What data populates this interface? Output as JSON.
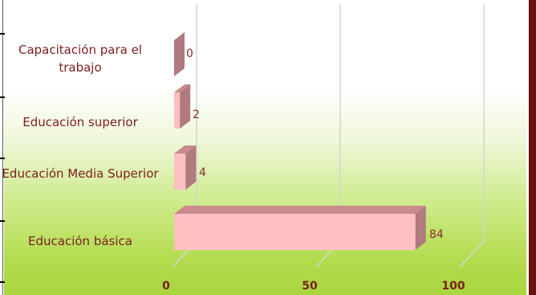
{
  "chart_data": {
    "type": "bar",
    "orientation": "horizontal",
    "categories": [
      "Capacitación para el trabajo",
      "Educación superior",
      "Educación Media Superior",
      "Educación básica"
    ],
    "values": [
      0,
      2,
      4,
      84
    ],
    "xlim": [
      0,
      100
    ],
    "x_ticks": [
      "0",
      "50",
      "100"
    ],
    "grid": true,
    "bar_color": "#ffbfc3",
    "bar_shade_color": "#b07a7e",
    "background_gradient": [
      "#ffffff",
      "#a9d63e"
    ],
    "text_color": "#7b1e1e"
  }
}
